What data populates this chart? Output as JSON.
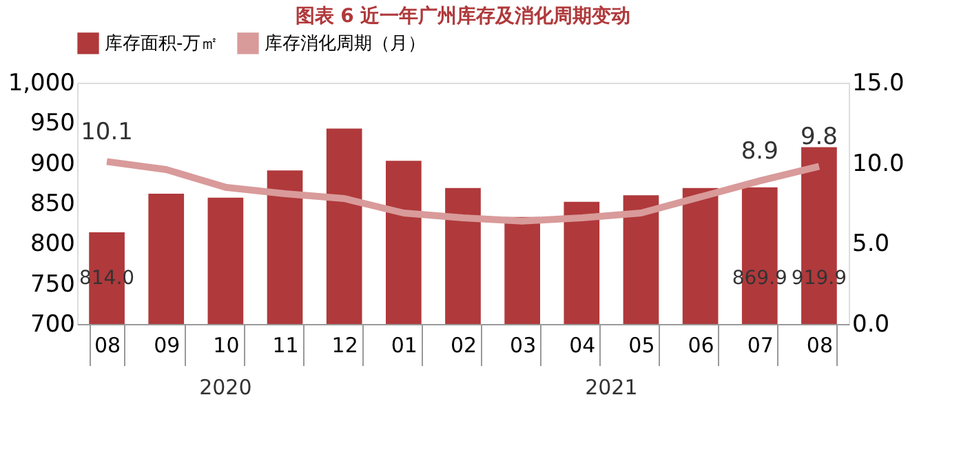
{
  "chart_data": {
    "type": "bar",
    "title": "图表 6  近一年广州库存及消化周期变动",
    "categories": [
      "08",
      "09",
      "10",
      "11",
      "12",
      "01",
      "02",
      "03",
      "04",
      "05",
      "06",
      "07",
      "08"
    ],
    "series": [
      {
        "name": "库存面积-万㎡",
        "color": "#b0393b",
        "values": [
          814.0,
          862,
          857,
          891,
          943,
          903,
          869,
          833,
          852,
          860,
          869,
          869.9,
          919.9
        ],
        "value_labels": [
          "814.0",
          null,
          null,
          null,
          null,
          null,
          null,
          null,
          null,
          null,
          null,
          "869.9",
          "919.9"
        ]
      },
      {
        "name": "库存消化周期（月）",
        "type": "line",
        "axis": "y2",
        "color": "#d99a9a",
        "values": [
          10.1,
          9.6,
          8.5,
          8.1,
          7.8,
          6.9,
          6.6,
          6.4,
          6.6,
          6.9,
          7.9,
          8.9,
          9.8
        ],
        "value_labels": [
          "10.1",
          null,
          null,
          null,
          null,
          null,
          null,
          null,
          null,
          null,
          null,
          "8.9",
          "9.8"
        ]
      }
    ],
    "ylim": [
      700,
      1000
    ],
    "yticks": [
      {
        "value": 700,
        "label": "700"
      },
      {
        "value": 750,
        "label": "750"
      },
      {
        "value": 800,
        "label": "800"
      },
      {
        "value": 850,
        "label": "850"
      },
      {
        "value": 900,
        "label": "900"
      },
      {
        "value": 950,
        "label": "950"
      },
      {
        "value": 1000,
        "label": "1,000"
      }
    ],
    "y2lim": [
      0,
      15
    ],
    "y2ticks": [
      {
        "value": 0,
        "label": "0.0"
      },
      {
        "value": 5,
        "label": "5.0"
      },
      {
        "value": 10,
        "label": "10.0"
      },
      {
        "value": 15,
        "label": "15.0"
      }
    ],
    "annotations": [
      "2020",
      "2021"
    ],
    "legend": "top",
    "grid": false,
    "marker": "none",
    "line_style": "solid"
  }
}
